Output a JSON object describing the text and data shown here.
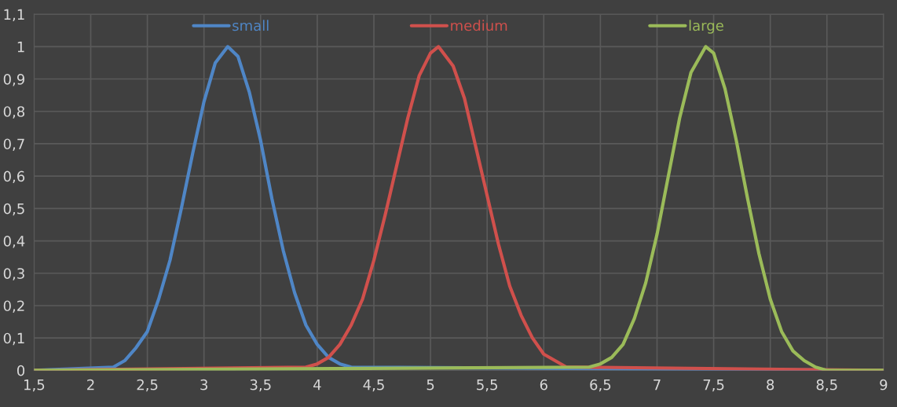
{
  "chart_data": {
    "type": "line",
    "series": [
      {
        "name": "small",
        "color": "#4f86c6",
        "x": [
          1.5,
          2.2,
          2.3,
          2.4,
          2.5,
          2.6,
          2.7,
          2.8,
          2.9,
          3.0,
          3.1,
          3.21,
          3.3,
          3.4,
          3.5,
          3.6,
          3.7,
          3.8,
          3.9,
          4.0,
          4.1,
          4.2,
          4.3,
          9
        ],
        "values": [
          0,
          0.01,
          0.03,
          0.07,
          0.12,
          0.22,
          0.34,
          0.5,
          0.67,
          0.83,
          0.95,
          1.0,
          0.97,
          0.86,
          0.71,
          0.53,
          0.37,
          0.24,
          0.14,
          0.08,
          0.04,
          0.02,
          0.01,
          0
        ]
      },
      {
        "name": "medium",
        "color": "#d0504c",
        "x": [
          1.5,
          3.9,
          4.0,
          4.1,
          4.2,
          4.3,
          4.4,
          4.5,
          4.6,
          4.7,
          4.8,
          4.9,
          5.0,
          5.07,
          5.2,
          5.3,
          5.4,
          5.5,
          5.6,
          5.7,
          5.8,
          5.9,
          6.0,
          6.1,
          6.2,
          6.3,
          9
        ],
        "values": [
          0,
          0.01,
          0.02,
          0.04,
          0.08,
          0.14,
          0.22,
          0.34,
          0.48,
          0.63,
          0.78,
          0.91,
          0.98,
          1.0,
          0.94,
          0.84,
          0.69,
          0.54,
          0.39,
          0.26,
          0.17,
          0.1,
          0.05,
          0.03,
          0.01,
          0.01,
          0
        ]
      },
      {
        "name": "large",
        "color": "#9bbb59",
        "x": [
          1.5,
          6.4,
          6.5,
          6.6,
          6.7,
          6.8,
          6.9,
          7.0,
          7.1,
          7.2,
          7.3,
          7.43,
          7.5,
          7.6,
          7.7,
          7.8,
          7.9,
          8.0,
          8.1,
          8.2,
          8.3,
          8.4,
          8.5,
          9
        ],
        "values": [
          0,
          0.01,
          0.02,
          0.04,
          0.08,
          0.16,
          0.27,
          0.42,
          0.6,
          0.78,
          0.92,
          1.0,
          0.98,
          0.87,
          0.71,
          0.53,
          0.36,
          0.22,
          0.12,
          0.06,
          0.03,
          0.01,
          0,
          0
        ]
      }
    ],
    "xlim": [
      1.5,
      9
    ],
    "xticks": [
      {
        "value": 1.5,
        "label": "1,5"
      },
      2,
      {
        "value": 2.5,
        "label": "2,5"
      },
      3,
      {
        "value": 3.5,
        "label": "3,5"
      },
      4,
      {
        "value": 4.5,
        "label": "4,5"
      },
      5,
      {
        "value": 5.5,
        "label": "5,5"
      },
      6,
      {
        "value": 6.5,
        "label": "6,5"
      },
      7,
      {
        "value": 7.5,
        "label": "7,5"
      },
      8,
      {
        "value": 8.5,
        "label": "8,5"
      },
      9
    ],
    "ylim": [
      0,
      1.1
    ],
    "yticks": [
      0,
      {
        "value": 0.1,
        "label": "0,1"
      },
      {
        "value": 0.2,
        "label": "0,2"
      },
      {
        "value": 0.3,
        "label": "0,3"
      },
      {
        "value": 0.4,
        "label": "0,4"
      },
      {
        "value": 0.5,
        "label": "0,5"
      },
      {
        "value": 0.6,
        "label": "0,6"
      },
      {
        "value": 0.7,
        "label": "0,7"
      },
      {
        "value": 0.8,
        "label": "0,8"
      },
      {
        "value": 0.9,
        "label": "0,9"
      },
      1,
      {
        "value": 1.1,
        "label": "1,1"
      }
    ],
    "grid": true,
    "legend": "top",
    "line_style": "solid",
    "marker": "none"
  }
}
